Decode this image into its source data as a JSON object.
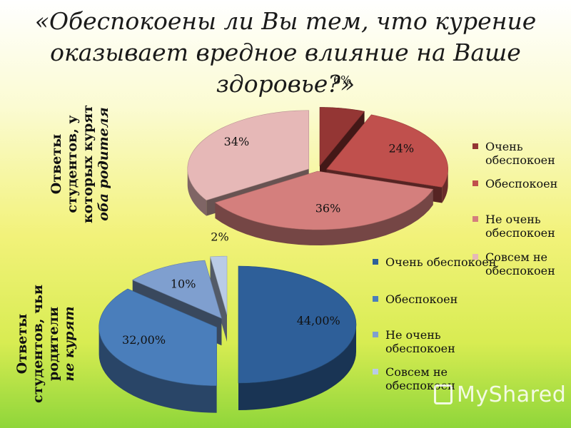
{
  "title": "«Обеспокоены ли Вы тем, что курение оказывает вредное влияние на Ваше здоровье?»",
  "chart_data": [
    {
      "type": "pie",
      "group_label": [
        "Ответы",
        "студентов, у",
        "которых курят"
      ],
      "group_label_italic": "оба родителя",
      "categories": [
        "Очень обеспокоен",
        "Обеспокоен",
        "Не очень обеспокоен",
        "Совсем не обеспокоен"
      ],
      "values": [
        6,
        24,
        36,
        34
      ],
      "labels": [
        "6%",
        "24%",
        "36%",
        "34%"
      ],
      "colors": [
        "#943634",
        "#c0504d",
        "#d47f7d",
        "#e6b8b7"
      ]
    },
    {
      "type": "pie",
      "group_label": [
        "Ответы",
        "студентов, чьи",
        "родители"
      ],
      "group_label_italic": "не курят",
      "categories": [
        "Очень обеспокоен",
        "Обеспокоен",
        "Не очень обеспокоен",
        "Совсем не обеспокоен"
      ],
      "values": [
        44,
        32,
        10,
        2
      ],
      "labels": [
        "44,00%",
        "32,00%",
        "10%",
        "2%"
      ],
      "colors": [
        "#2e5f99",
        "#4a7ebb",
        "#7f9fcf",
        "#b9cbe6"
      ]
    }
  ],
  "watermark": "MyShared"
}
